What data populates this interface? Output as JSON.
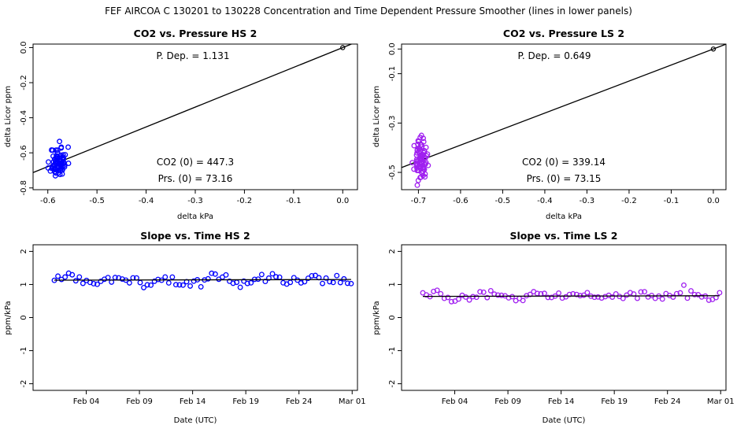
{
  "figure": {
    "suptitle": "FEF   AIRCOA C   130201 to 130228   Concentration and Time Dependent Pressure Smoother (lines in lower panels)"
  },
  "colors": {
    "hs": "#0000ff",
    "ls": "#a020f0",
    "line": "#000000"
  },
  "chart_data": [
    {
      "id": "p1",
      "type": "scatter",
      "title": "CO2 vs. Pressure HS 2",
      "xlabel": "delta kPa",
      "ylabel": "delta Licor ppm",
      "xlim": [
        -0.63,
        0.03
      ],
      "ylim": [
        -0.81,
        0.02
      ],
      "xticks": [
        -0.6,
        -0.5,
        -0.4,
        -0.3,
        -0.2,
        -0.1,
        0.0
      ],
      "xtick_labels": [
        "-0.6",
        "-0.5",
        "-0.4",
        "-0.3",
        "-0.2",
        "-0.1",
        "0.0"
      ],
      "yticks": [
        0.0,
        -0.2,
        -0.4,
        -0.6,
        -0.8
      ],
      "ytick_labels": [
        "0.0",
        "-0.2",
        "-0.4",
        "-0.6",
        "-0.8"
      ],
      "fit": {
        "slope": 1.131,
        "intercept": 0
      },
      "reference_point": [
        0,
        0
      ],
      "cluster": {
        "x_center": -0.578,
        "x_spread": 0.014,
        "y_center": -0.655,
        "y_spread": 0.055,
        "n": 80,
        "seed": 11
      },
      "annotations": {
        "pdep": "P. Dep. =  1.131",
        "co2": "CO2 (0) =  447.3",
        "prs": "Prs. (0) =  73.16"
      }
    },
    {
      "id": "p2",
      "type": "scatter",
      "title": "CO2 vs. Pressure LS 2",
      "xlabel": "delta kPa",
      "ylabel": "delta Licor ppm",
      "xlim": [
        -0.74,
        0.03
      ],
      "ylim": [
        -0.57,
        0.02
      ],
      "xticks": [
        -0.7,
        -0.6,
        -0.5,
        -0.4,
        -0.3,
        -0.2,
        -0.1,
        0.0
      ],
      "xtick_labels": [
        "-0.7",
        "-0.6",
        "-0.5",
        "-0.4",
        "-0.3",
        "-0.2",
        "-0.1",
        "0.0"
      ],
      "yticks": [
        0.0,
        -0.1,
        -0.3,
        -0.5
      ],
      "ytick_labels": [
        "0.0",
        "-0.1",
        "-0.3",
        "-0.5"
      ],
      "fit": {
        "slope": 0.649,
        "intercept": 0
      },
      "reference_point": [
        0,
        0
      ],
      "cluster": {
        "x_center": -0.695,
        "x_spread": 0.012,
        "y_center": -0.45,
        "y_spread": 0.05,
        "n": 80,
        "seed": 23
      },
      "annotations": {
        "pdep": "P. Dep. =  0.649",
        "co2": "CO2 (0) =  339.14",
        "prs": "Prs. (0) =  73.15"
      }
    },
    {
      "id": "p3",
      "type": "scatter",
      "title": "Slope vs. Time HS 2",
      "xlabel": "Date (UTC)",
      "ylabel": "ppm/kPa",
      "xlim": [
        -2.0,
        28.5
      ],
      "ylim": [
        -2.2,
        2.2
      ],
      "xticks": [
        3,
        8,
        13,
        18,
        23,
        28
      ],
      "xtick_labels": [
        "Feb 04",
        "Feb 09",
        "Feb 14",
        "Feb 19",
        "Feb 24",
        "Mar 01"
      ],
      "yticks": [
        2,
        1,
        0,
        -1,
        -2
      ],
      "ytick_labels": [
        "2",
        "1",
        "0",
        "-1",
        "-2"
      ],
      "smooth_line": {
        "x": [
          0.0,
          27.9
        ],
        "y": [
          1.13,
          1.15
        ]
      },
      "series": {
        "x_start": 0.0,
        "x_end": 27.9,
        "n": 84,
        "mean": 1.14,
        "amp": 0.07,
        "noise": 0.08,
        "seed": 5
      }
    },
    {
      "id": "p4",
      "type": "scatter",
      "title": "Slope vs. Time LS 2",
      "xlabel": "Date (UTC)",
      "ylabel": "ppm/kPa",
      "xlim": [
        -2.0,
        28.5
      ],
      "ylim": [
        -2.2,
        2.2
      ],
      "xticks": [
        3,
        8,
        13,
        18,
        23,
        28
      ],
      "xtick_labels": [
        "Feb 04",
        "Feb 09",
        "Feb 14",
        "Feb 19",
        "Feb 24",
        "Mar 01"
      ],
      "yticks": [
        2,
        1,
        0,
        -1,
        -2
      ],
      "ytick_labels": [
        "2",
        "1",
        "0",
        "-1",
        "-2"
      ],
      "smooth_line": {
        "x": [
          0.0,
          27.9
        ],
        "y": [
          0.64,
          0.66
        ]
      },
      "series": {
        "x_start": 0.0,
        "x_end": 27.9,
        "n": 84,
        "mean": 0.65,
        "amp": 0.05,
        "noise": 0.07,
        "seed": 9
      }
    }
  ]
}
